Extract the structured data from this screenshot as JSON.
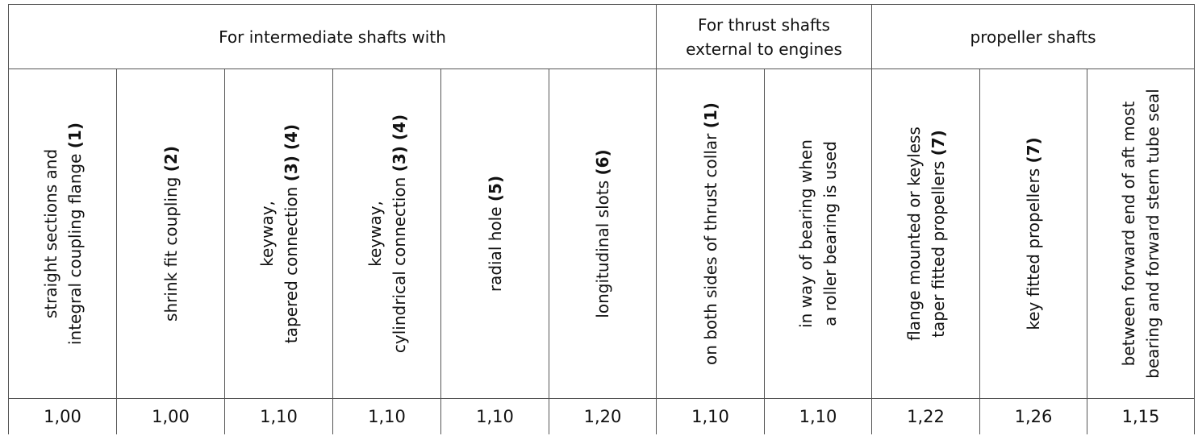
{
  "groups": {
    "intermediate": "For intermediate shafts with",
    "thrust_line1": "For thrust shafts",
    "thrust_line2": "external to engines",
    "propeller": "propeller shafts"
  },
  "columns": [
    {
      "line1": "straight sections and",
      "line2": "integral coupling flange",
      "ref": "(1)",
      "value": "1,00"
    },
    {
      "line1": "",
      "line2": "shrink fit coupling",
      "ref": "(2)",
      "value": "1,00"
    },
    {
      "line1": "keyway,",
      "line2": "tapered connection",
      "ref": "(3) (4)",
      "value": "1,10"
    },
    {
      "line1": "keyway,",
      "line2": "cylindrical connection",
      "ref": "(3) (4)",
      "value": "1,10"
    },
    {
      "line1": "",
      "line2": "radial hole",
      "ref": "(5)",
      "value": "1,10"
    },
    {
      "line1": "",
      "line2": "longitudinal slots",
      "ref": "(6)",
      "value": "1,20"
    },
    {
      "line1": "",
      "line2": "on both sides of thrust collar",
      "ref": "(1)",
      "value": "1,10"
    },
    {
      "line1": "in way of bearing when",
      "line2": "a roller bearing is used",
      "ref": "",
      "value": "1,10"
    },
    {
      "line1": "flange mounted or keyless",
      "line2": "taper fitted propellers",
      "ref": "(7)",
      "value": "1,22"
    },
    {
      "line1": "",
      "line2": "key fitted propellers",
      "ref": "(7)",
      "value": "1,26"
    },
    {
      "line1": "between forward end of aft most",
      "line2": "bearing and forward stern tube seal",
      "ref": "",
      "value": "1,15"
    }
  ]
}
